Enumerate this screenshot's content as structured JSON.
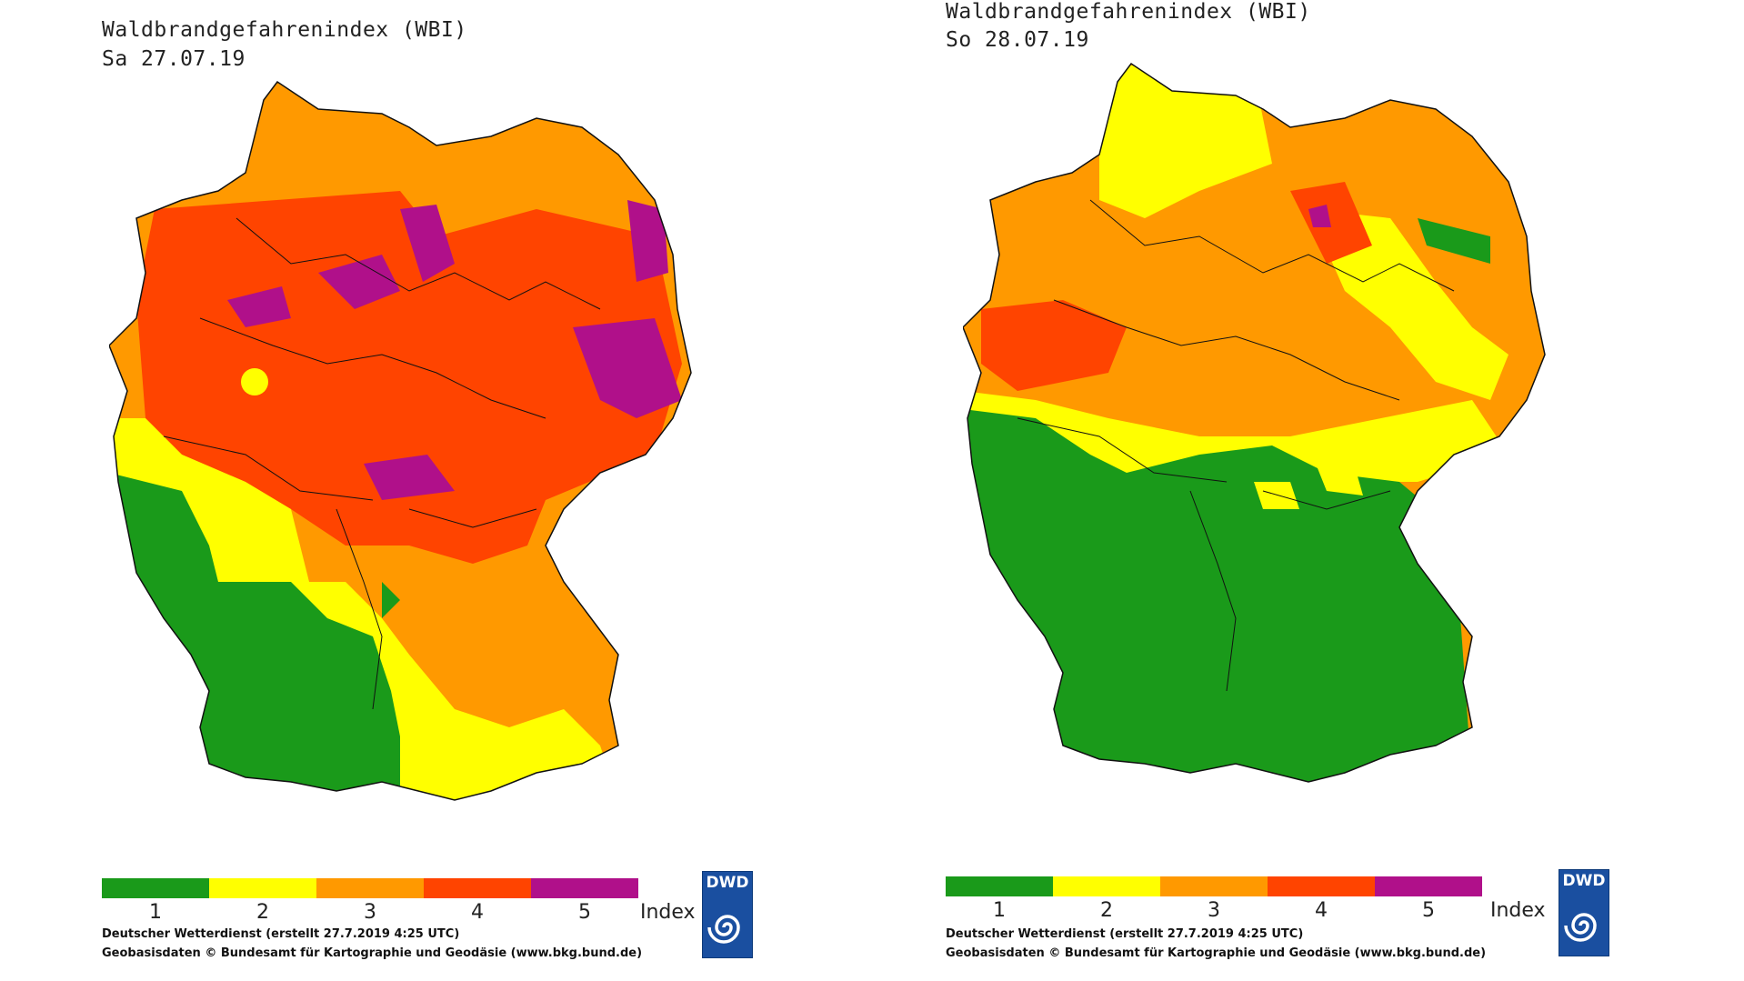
{
  "maps": [
    {
      "title": "Waldbrandgefahrenindex (WBI)",
      "date": "Sa 27.07.19",
      "credit_line1": "Deutscher Wetterdienst (erstellt 27.7.2019 4:25 UTC)",
      "credit_line2": "Geobasisdaten © Bundesamt für Kartographie und Geodäsie (www.bkg.bund.de)"
    },
    {
      "title": "Waldbrandgefahrenindex (WBI)",
      "date": "So 28.07.19",
      "credit_line1": "Deutscher Wetterdienst (erstellt 27.7.2019 4:25 UTC)",
      "credit_line2": "Geobasisdaten © Bundesamt für Kartographie und Geodäsie (www.bkg.bund.de)"
    }
  ],
  "legend": {
    "levels": [
      {
        "label": "1",
        "color": "#1a9a1a"
      },
      {
        "label": "2",
        "color": "#ffff00"
      },
      {
        "label": "3",
        "color": "#ff9900"
      },
      {
        "label": "4",
        "color": "#ff4400"
      },
      {
        "label": "5",
        "color": "#b0108a"
      }
    ],
    "index_label": "Index"
  },
  "logo": {
    "text": "DWD",
    "icon": "dwd-swirl-icon"
  }
}
